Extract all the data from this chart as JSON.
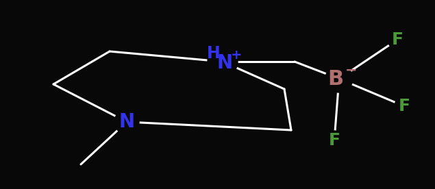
{
  "bg_color": "#080808",
  "bond_color": "#ffffff",
  "N_plus_color": "#3333ee",
  "N_color": "#3333ee",
  "B_color": "#b07070",
  "F_color": "#4a9a3a",
  "bond_width": 2.2,
  "font_size_NH": 17,
  "font_size_N": 20,
  "font_size_B": 22,
  "font_size_F": 18,
  "font_size_charge": 14,
  "fig_width": 6.35,
  "fig_height": 2.76,
  "dpi": 100,
  "xlim": [
    0,
    635
  ],
  "ylim": [
    0,
    276
  ]
}
